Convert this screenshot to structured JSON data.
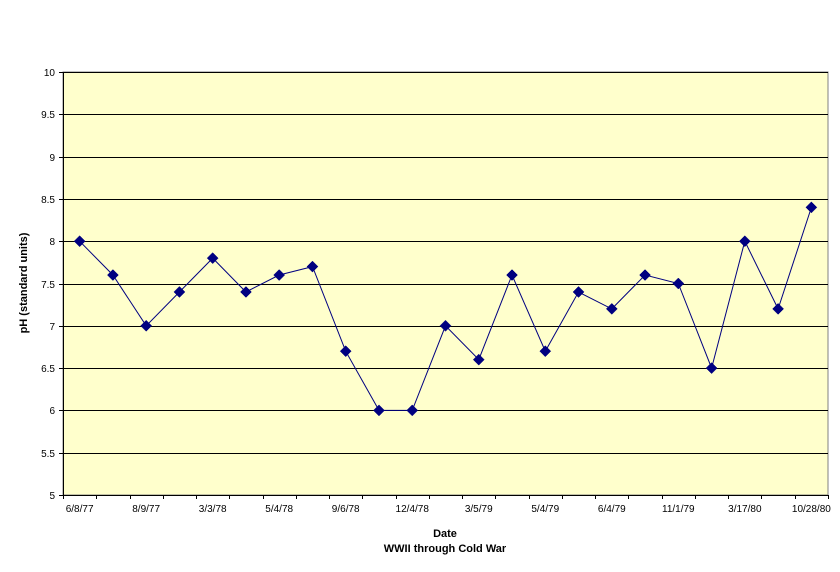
{
  "chart_data": {
    "type": "line",
    "xlabel": "Date",
    "subtitle": "WWII through Cold War",
    "ylabel": "pH (standard units)",
    "ylim": [
      5,
      10
    ],
    "yticks": [
      5,
      5.5,
      6,
      6.5,
      7,
      7.5,
      8,
      8.5,
      9,
      9.5,
      10
    ],
    "grid": "horizontal",
    "x_tick_labels": [
      "6/8/77",
      "8/9/77",
      "3/3/78",
      "5/4/78",
      "9/6/78",
      "12/4/78",
      "3/5/79",
      "5/4/79",
      "6/4/79",
      "11/1/79",
      "3/17/80",
      "10/28/80"
    ],
    "values": [
      8.0,
      7.6,
      7.0,
      7.4,
      7.8,
      7.4,
      7.6,
      7.7,
      6.7,
      6.0,
      6.0,
      7.0,
      6.6,
      7.6,
      6.7,
      7.4,
      7.2,
      7.6,
      7.5,
      6.5,
      8.0,
      7.2,
      8.4
    ],
    "colors": {
      "plot_background": "#FFFFCC",
      "line": "#000080",
      "marker": "#000080",
      "gridline": "#000000"
    },
    "marker": "diamond"
  }
}
